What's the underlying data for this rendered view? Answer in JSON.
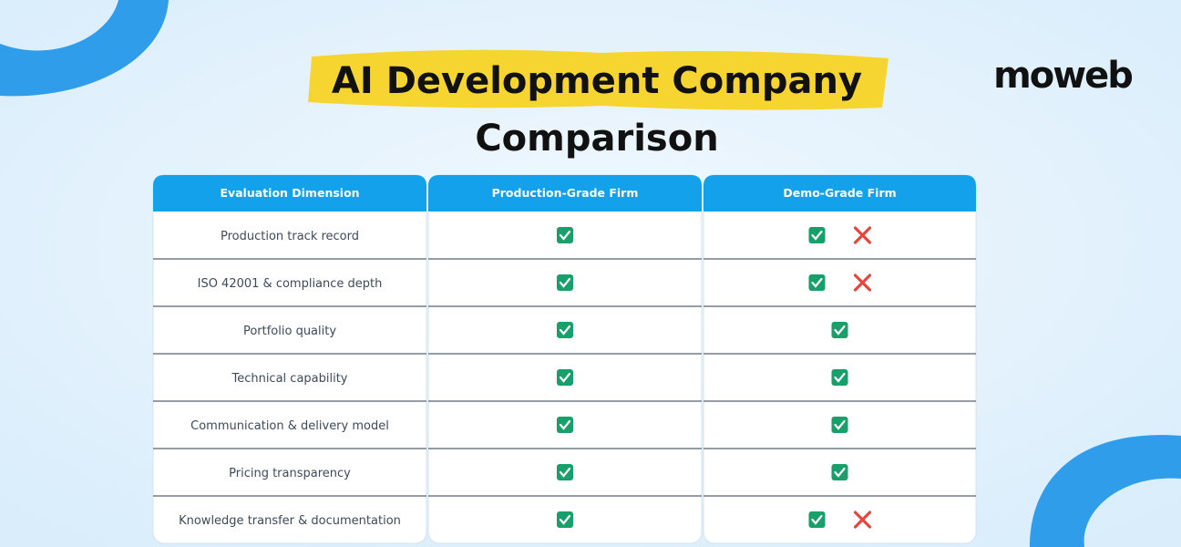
{
  "title": [
    "AI Development Company",
    "Comparison"
  ],
  "logo": "moweb",
  "table": {
    "headers": [
      "Evaluation Dimension",
      "Production-Grade Firm",
      "Demo-Grade Firm"
    ],
    "rows": [
      {
        "dimension": "Production track record",
        "production": [
          "check"
        ],
        "demo": [
          "check",
          "cross"
        ]
      },
      {
        "dimension": "ISO 42001 & compliance depth",
        "production": [
          "check"
        ],
        "demo": [
          "check",
          "cross"
        ]
      },
      {
        "dimension": "Portfolio quality",
        "production": [
          "check"
        ],
        "demo": [
          "check"
        ]
      },
      {
        "dimension": "Technical capability",
        "production": [
          "check"
        ],
        "demo": [
          "check"
        ]
      },
      {
        "dimension": "Communication & delivery model",
        "production": [
          "check"
        ],
        "demo": [
          "check"
        ]
      },
      {
        "dimension": "Pricing transparency",
        "production": [
          "check"
        ],
        "demo": [
          "check"
        ]
      },
      {
        "dimension": "Knowledge transfer & documentation",
        "production": [
          "check"
        ],
        "demo": [
          "check",
          "cross"
        ]
      }
    ]
  }
}
